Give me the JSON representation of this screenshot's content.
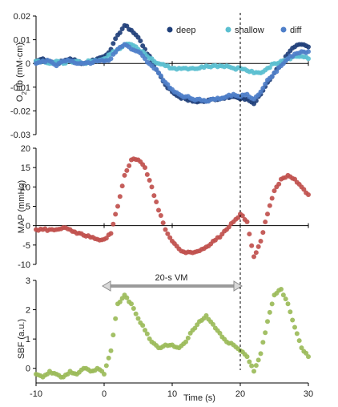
{
  "chart_data": [
    {
      "id": "o2hb",
      "type": "scatter",
      "ylabel": "O2Hb (mM·cm)",
      "ylabel_main": "O",
      "ylabel_sub": "2",
      "ylabel_rest": "Hb (mM·cm)",
      "xlim": [
        -10,
        30
      ],
      "ylim": [
        -0.03,
        0.02
      ],
      "yticks": [
        -0.03,
        -0.02,
        -0.01,
        0,
        0.01,
        0.02
      ],
      "ytick_labels": [
        "-0.03",
        "-0.02",
        "-0.01",
        "0",
        "0.01",
        "0.02"
      ],
      "legend_placement": "top-right",
      "series": [
        {
          "name": "deep",
          "color": "#1f3f7a",
          "points": [
            [
              -10,
              0.001
            ],
            [
              -9,
              0.002
            ],
            [
              -8,
              0.001
            ],
            [
              -7,
              0.0
            ],
            [
              -6,
              0.001
            ],
            [
              -5,
              0.002
            ],
            [
              -4,
              0.001
            ],
            [
              -3,
              0.0
            ],
            [
              -2,
              0.001
            ],
            [
              -1,
              0.002
            ],
            [
              0,
              0.003
            ],
            [
              1,
              0.006
            ],
            [
              2,
              0.012
            ],
            [
              3,
              0.016
            ],
            [
              4,
              0.014
            ],
            [
              5,
              0.011
            ],
            [
              6,
              0.006
            ],
            [
              7,
              0.001
            ],
            [
              8,
              -0.004
            ],
            [
              9,
              -0.009
            ],
            [
              10,
              -0.012
            ],
            [
              11,
              -0.014
            ],
            [
              12,
              -0.015
            ],
            [
              13,
              -0.016
            ],
            [
              14,
              -0.016
            ],
            [
              15,
              -0.016
            ],
            [
              16,
              -0.015
            ],
            [
              17,
              -0.015
            ],
            [
              18,
              -0.014
            ],
            [
              19,
              -0.014
            ],
            [
              20,
              -0.015
            ],
            [
              21,
              -0.015
            ],
            [
              22,
              -0.017
            ],
            [
              23,
              -0.013
            ],
            [
              24,
              -0.008
            ],
            [
              25,
              -0.004
            ],
            [
              26,
              0.0
            ],
            [
              27,
              0.004
            ],
            [
              28,
              0.007
            ],
            [
              29,
              0.008
            ],
            [
              30,
              0.007
            ]
          ]
        },
        {
          "name": "shallow",
          "color": "#5bbfd0",
          "points": [
            [
              -10,
              0.001
            ],
            [
              -9,
              0.001
            ],
            [
              -8,
              0.0
            ],
            [
              -7,
              0.001
            ],
            [
              -6,
              0.0
            ],
            [
              -5,
              0.001
            ],
            [
              -4,
              0.001
            ],
            [
              -3,
              0.0
            ],
            [
              -2,
              0.001
            ],
            [
              -1,
              0.001
            ],
            [
              0,
              0.002
            ],
            [
              1,
              0.004
            ],
            [
              2,
              0.006
            ],
            [
              3,
              0.008
            ],
            [
              4,
              0.008
            ],
            [
              5,
              0.006
            ],
            [
              6,
              0.004
            ],
            [
              7,
              0.002
            ],
            [
              8,
              0.0
            ],
            [
              9,
              -0.001
            ],
            [
              10,
              -0.002
            ],
            [
              11,
              -0.002
            ],
            [
              12,
              -0.002
            ],
            [
              13,
              -0.002
            ],
            [
              14,
              -0.002
            ],
            [
              15,
              -0.001
            ],
            [
              16,
              -0.001
            ],
            [
              17,
              -0.001
            ],
            [
              18,
              -0.001
            ],
            [
              19,
              -0.002
            ],
            [
              20,
              -0.002
            ],
            [
              21,
              -0.003
            ],
            [
              22,
              -0.004
            ],
            [
              23,
              -0.004
            ],
            [
              24,
              -0.002
            ],
            [
              25,
              0.0
            ],
            [
              26,
              0.001
            ],
            [
              27,
              0.002
            ],
            [
              28,
              0.003
            ],
            [
              29,
              0.003
            ],
            [
              30,
              0.002
            ]
          ]
        },
        {
          "name": "diff",
          "color": "#4f7fc9",
          "points": [
            [
              -10,
              0.0
            ],
            [
              -9,
              0.001
            ],
            [
              -8,
              0.001
            ],
            [
              -7,
              -0.001
            ],
            [
              -6,
              0.001
            ],
            [
              -5,
              0.001
            ],
            [
              -4,
              0.0
            ],
            [
              -3,
              0.0
            ],
            [
              -2,
              0.0
            ],
            [
              -1,
              0.001
            ],
            [
              0,
              0.001
            ],
            [
              1,
              0.002
            ],
            [
              2,
              0.006
            ],
            [
              3,
              0.008
            ],
            [
              4,
              0.006
            ],
            [
              5,
              0.005
            ],
            [
              6,
              0.002
            ],
            [
              7,
              -0.001
            ],
            [
              8,
              -0.004
            ],
            [
              9,
              -0.008
            ],
            [
              10,
              -0.011
            ],
            [
              11,
              -0.013
            ],
            [
              12,
              -0.014
            ],
            [
              13,
              -0.015
            ],
            [
              14,
              -0.015
            ],
            [
              15,
              -0.016
            ],
            [
              16,
              -0.015
            ],
            [
              17,
              -0.015
            ],
            [
              18,
              -0.014
            ],
            [
              19,
              -0.013
            ],
            [
              20,
              -0.014
            ],
            [
              21,
              -0.013
            ],
            [
              22,
              -0.015
            ],
            [
              23,
              -0.012
            ],
            [
              24,
              -0.007
            ],
            [
              25,
              -0.004
            ],
            [
              26,
              -0.001
            ],
            [
              27,
              0.002
            ],
            [
              28,
              0.004
            ],
            [
              29,
              0.005
            ],
            [
              30,
              0.005
            ]
          ]
        }
      ]
    },
    {
      "id": "map",
      "type": "scatter",
      "ylabel": "MAP (mmHg)",
      "xlim": [
        -10,
        30
      ],
      "ylim": [
        -10,
        20
      ],
      "yticks": [
        -10,
        -5,
        0,
        5,
        10,
        15,
        20
      ],
      "ytick_labels": [
        "-10",
        "-5",
        "0",
        "5",
        "10",
        "15",
        "20"
      ],
      "series": [
        {
          "name": "",
          "color": "#c0504d",
          "points": [
            [
              -10,
              -1
            ],
            [
              -9,
              -1
            ],
            [
              -8,
              -1
            ],
            [
              -7,
              -1
            ],
            [
              -6,
              -0.5
            ],
            [
              -5,
              -1
            ],
            [
              -4,
              -2
            ],
            [
              -3,
              -2.5
            ],
            [
              -2,
              -3
            ],
            [
              -1,
              -3.5
            ],
            [
              0,
              -3.5
            ],
            [
              1,
              -2
            ],
            [
              2,
              5
            ],
            [
              3,
              13
            ],
            [
              4,
              17
            ],
            [
              5,
              17
            ],
            [
              6,
              15
            ],
            [
              7,
              10
            ],
            [
              8,
              4
            ],
            [
              9,
              -1
            ],
            [
              10,
              -4
            ],
            [
              11,
              -6
            ],
            [
              12,
              -7
            ],
            [
              13,
              -7
            ],
            [
              14,
              -6.5
            ],
            [
              15,
              -5.5
            ],
            [
              16,
              -4
            ],
            [
              17,
              -3
            ],
            [
              18,
              -1
            ],
            [
              19,
              1
            ],
            [
              20,
              3
            ],
            [
              21,
              1
            ],
            [
              22,
              -8
            ],
            [
              23,
              -4
            ],
            [
              24,
              3
            ],
            [
              25,
              9
            ],
            [
              26,
              12
            ],
            [
              27,
              13
            ],
            [
              28,
              12
            ],
            [
              29,
              10
            ],
            [
              30,
              8
            ]
          ]
        }
      ]
    },
    {
      "id": "sbf",
      "type": "scatter",
      "ylabel": "SBF (a.u.)",
      "xlabel": "Time (s)",
      "xlim": [
        -10,
        30
      ],
      "ylim": [
        -0.5,
        3
      ],
      "xticks": [
        -10,
        0,
        10,
        20,
        30
      ],
      "xtick_labels": [
        "-10",
        "0",
        "10",
        "20",
        "30"
      ],
      "yticks": [
        0,
        1,
        2,
        3
      ],
      "ytick_labels": [
        "0",
        "1",
        "2",
        "3"
      ],
      "series": [
        {
          "name": "",
          "color": "#9bbb59",
          "points": [
            [
              -10,
              -0.2
            ],
            [
              -9,
              -0.3
            ],
            [
              -8,
              -0.1
            ],
            [
              -7,
              -0.2
            ],
            [
              -6,
              -0.3
            ],
            [
              -5,
              -0.1
            ],
            [
              -4,
              -0.2
            ],
            [
              -3,
              0.0
            ],
            [
              -2,
              -0.1
            ],
            [
              -1,
              0.0
            ],
            [
              0,
              -0.2
            ],
            [
              1,
              0.6
            ],
            [
              2,
              2.2
            ],
            [
              3,
              2.5
            ],
            [
              4,
              2.2
            ],
            [
              5,
              1.7
            ],
            [
              6,
              1.3
            ],
            [
              7,
              0.9
            ],
            [
              8,
              0.7
            ],
            [
              9,
              0.8
            ],
            [
              10,
              0.8
            ],
            [
              11,
              0.7
            ],
            [
              12,
              0.9
            ],
            [
              13,
              1.3
            ],
            [
              14,
              1.6
            ],
            [
              15,
              1.8
            ],
            [
              16,
              1.5
            ],
            [
              17,
              1.2
            ],
            [
              18,
              0.9
            ],
            [
              19,
              0.8
            ],
            [
              20,
              0.6
            ],
            [
              21,
              0.4
            ],
            [
              22,
              -0.1
            ],
            [
              23,
              0.5
            ],
            [
              24,
              1.6
            ],
            [
              25,
              2.5
            ],
            [
              26,
              2.7
            ],
            [
              27,
              2.2
            ],
            [
              28,
              1.4
            ],
            [
              29,
              0.7
            ],
            [
              30,
              0.4
            ]
          ]
        }
      ],
      "annotation": {
        "label": "20-s VM",
        "x_start": 0,
        "x_end": 20,
        "y": 2.8
      }
    }
  ],
  "marker": {
    "x": 20,
    "style": "dashed"
  }
}
